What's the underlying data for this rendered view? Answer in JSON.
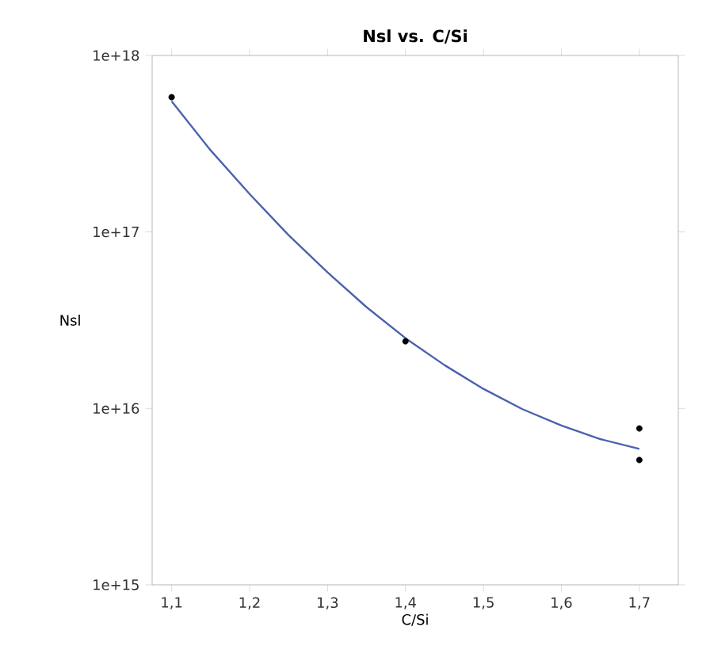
{
  "chart_data": {
    "type": "scatter",
    "title": "Nsl vs. C/Si",
    "xlabel": "C/Si",
    "ylabel": "Nsl",
    "log": "y",
    "xlim": [
      1.075,
      1.75
    ],
    "ylim": [
      1000000000000000.0,
      1e+18
    ],
    "xticks": [
      {
        "value": 1.1,
        "label": "1,1"
      },
      {
        "value": 1.2,
        "label": "1,2"
      },
      {
        "value": 1.3,
        "label": "1,3"
      },
      {
        "value": 1.4,
        "label": "1,4"
      },
      {
        "value": 1.5,
        "label": "1,5"
      },
      {
        "value": 1.6,
        "label": "1,6"
      },
      {
        "value": 1.7,
        "label": "1,7"
      }
    ],
    "yticks": [
      {
        "value": 1000000000000000.0,
        "label": "1e+15"
      },
      {
        "value": 1e+16,
        "label": "1e+16"
      },
      {
        "value": 1e+17,
        "label": "1e+17"
      },
      {
        "value": 1e+18,
        "label": "1e+18"
      }
    ],
    "series": [
      {
        "color": "#000000",
        "marker": "circle",
        "x": [
          1.1,
          1.4,
          1.7,
          1.7
        ],
        "values": [
          5.8e+17,
          2.4e+16,
          7700000000000000.0,
          5100000000000000.0
        ]
      },
      {
        "type": "line",
        "color": "#4a62b0",
        "marker": "none",
        "line_style": "solid",
        "x": [
          1.1,
          1.15,
          1.2,
          1.25,
          1.3,
          1.35,
          1.4,
          1.45,
          1.5,
          1.55,
          1.6,
          1.65,
          1.7
        ],
        "values": [
          5.5e+17,
          2.9e+17,
          1.64e+17,
          9.6e+16,
          5.9e+16,
          3.75e+16,
          2.5e+16,
          1.76e+16,
          1.29e+16,
          9900000000000000.0,
          8000000000000000.0,
          6700000000000000.0,
          5900000000000000.0
        ]
      }
    ]
  }
}
